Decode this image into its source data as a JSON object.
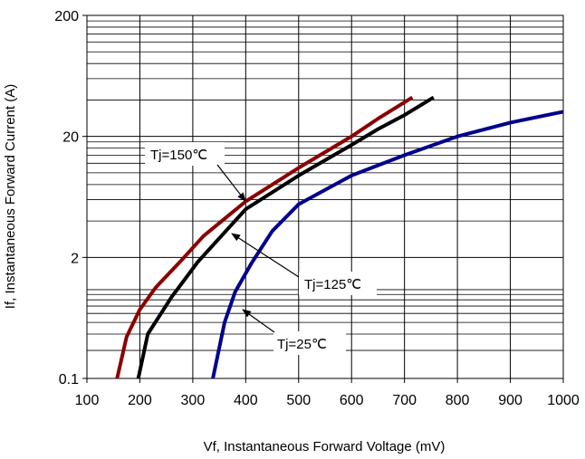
{
  "chart_data": {
    "type": "line",
    "title": "",
    "xlabel": "Vf, Instantaneous  Forward  Voltage (mV)",
    "ylabel": "If, Instantaneous  Forward Current (A)",
    "xlim": [
      100,
      1000
    ],
    "ylim": [
      0.1,
      200
    ],
    "yscale": "log",
    "grid": true,
    "x_ticks": [
      100,
      200,
      300,
      400,
      500,
      600,
      700,
      800,
      900,
      1000
    ],
    "y_ticks": [
      0.1,
      2,
      20,
      200
    ],
    "y_tick_labels": [
      "0.1",
      "2",
      "20",
      "200"
    ],
    "series": [
      {
        "name": "Tj=150℃",
        "color": "#8b0000",
        "points": [
          [
            157,
            0.1
          ],
          [
            175,
            0.28
          ],
          [
            200,
            0.55
          ],
          [
            230,
            0.95
          ],
          [
            280,
            1.9
          ],
          [
            320,
            3.0
          ],
          [
            400,
            5.8
          ],
          [
            500,
            11.0
          ],
          [
            600,
            20.0
          ],
          [
            650,
            28.0
          ],
          [
            715,
            42.0
          ]
        ]
      },
      {
        "name": "Tj=125℃",
        "color": "#000000",
        "points": [
          [
            197,
            0.1
          ],
          [
            215,
            0.3
          ],
          [
            260,
            0.75
          ],
          [
            310,
            1.8
          ],
          [
            400,
            5.0
          ],
          [
            500,
            9.5
          ],
          [
            600,
            17.0
          ],
          [
            650,
            23.0
          ],
          [
            700,
            30.0
          ],
          [
            755,
            42.0
          ]
        ]
      },
      {
        "name": "Tj=25℃",
        "color": "#00008b",
        "points": [
          [
            338,
            0.1
          ],
          [
            360,
            0.4
          ],
          [
            380,
            0.85
          ],
          [
            410,
            1.7
          ],
          [
            450,
            3.3
          ],
          [
            500,
            5.5
          ],
          [
            600,
            9.5
          ],
          [
            700,
            14.0
          ],
          [
            800,
            20.0
          ],
          [
            900,
            26.0
          ],
          [
            1000,
            32.0
          ]
        ]
      }
    ],
    "annotations": [
      {
        "text": "Tj=150℃",
        "series": 0
      },
      {
        "text": "Tj=125℃",
        "series": 1
      },
      {
        "text": "Tj=25℃",
        "series": 2
      }
    ]
  }
}
